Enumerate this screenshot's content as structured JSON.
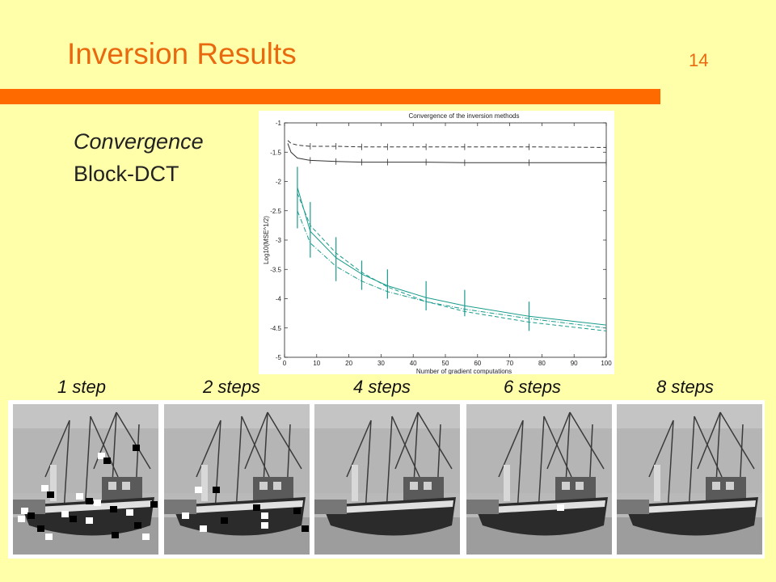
{
  "slide": {
    "title": "Inversion Results",
    "page_number": "14",
    "subtitle_italic": "Convergence",
    "subtitle": "Block-DCT",
    "accent_color": "#FF6A00",
    "background_color": "#FFFFAA"
  },
  "captions": [
    "1 step",
    "2 steps",
    "4 steps",
    "6 steps",
    "8 steps"
  ],
  "images": [
    {
      "label": "1 step",
      "artifact_level": "heavy"
    },
    {
      "label": "2 steps",
      "artifact_level": "medium"
    },
    {
      "label": "4 steps",
      "artifact_level": "none"
    },
    {
      "label": "6 steps",
      "artifact_level": "minor"
    },
    {
      "label": "8 steps",
      "artifact_level": "none"
    }
  ],
  "chart_data": {
    "type": "line",
    "title": "Convergence of the inversion methods",
    "xlabel": "Number of gradient computations",
    "ylabel": "Log10(MSE^1/2)",
    "xlim": [
      0,
      100
    ],
    "ylim": [
      -5,
      -1
    ],
    "xticks": [
      0,
      10,
      20,
      30,
      40,
      50,
      60,
      70,
      80,
      90,
      100
    ],
    "yticks": [
      -1,
      -1.5,
      -2,
      -2.5,
      -3,
      -3.5,
      -4,
      -4.5,
      -5
    ],
    "grid": false,
    "series": [
      {
        "color": "#333333",
        "style": "dashed",
        "x": [
          1,
          2,
          4,
          8,
          16,
          24,
          32,
          44,
          56,
          76,
          100
        ],
        "y": [
          -1.3,
          -1.35,
          -1.38,
          -1.4,
          -1.4,
          -1.41,
          -1.41,
          -1.41,
          -1.41,
          -1.41,
          -1.42
        ]
      },
      {
        "color": "#333333",
        "style": "solid",
        "x": [
          1,
          2,
          4,
          8,
          16,
          24,
          32,
          44,
          56,
          76,
          100
        ],
        "y": [
          -1.35,
          -1.5,
          -1.6,
          -1.64,
          -1.66,
          -1.67,
          -1.67,
          -1.67,
          -1.68,
          -1.68,
          -1.68
        ]
      },
      {
        "color": "#1A9C8C",
        "style": "solid",
        "x": [
          4,
          8,
          16,
          24,
          32,
          44,
          56,
          76,
          100
        ],
        "y": [
          -2.1,
          -2.85,
          -3.3,
          -3.58,
          -3.78,
          -3.98,
          -4.12,
          -4.3,
          -4.45
        ]
      },
      {
        "color": "#1A9C8C",
        "style": "dashed",
        "x": [
          4,
          8,
          16,
          24,
          32,
          44,
          56,
          76,
          100
        ],
        "y": [
          -2.2,
          -2.75,
          -3.22,
          -3.55,
          -3.8,
          -4.05,
          -4.22,
          -4.4,
          -4.55
        ]
      },
      {
        "color": "#1A9C8C",
        "style": "dashdot",
        "x": [
          4,
          8,
          16,
          24,
          32,
          44,
          56,
          76,
          100
        ],
        "y": [
          -2.5,
          -3.05,
          -3.45,
          -3.7,
          -3.88,
          -4.05,
          -4.18,
          -4.34,
          -4.5
        ]
      }
    ],
    "error_bars": {
      "color": "#1A9C8C",
      "x": [
        4,
        8,
        16,
        24,
        32,
        44,
        56,
        76
      ],
      "low": [
        -2.8,
        -3.3,
        -3.7,
        -3.85,
        -4.0,
        -4.2,
        -4.3,
        -4.55
      ],
      "high": [
        -1.75,
        -2.35,
        -2.95,
        -3.35,
        -3.5,
        -3.7,
        -3.85,
        -4.05
      ]
    }
  }
}
